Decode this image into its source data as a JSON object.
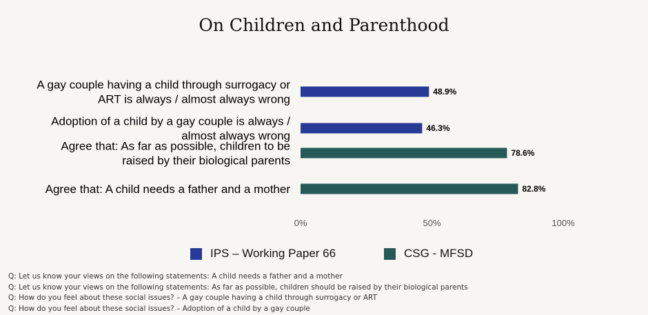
{
  "chart_data": {
    "type": "bar",
    "orientation": "horizontal",
    "title": "On Children and Parenthood",
    "categories": [
      [
        "A gay couple having a child through surrogacy or",
        "ART is always / almost always wrong"
      ],
      [
        "Adoption of a child by a gay couple is always /",
        "almost always wrong"
      ],
      [
        "Agree that: As far as possible, children to be",
        "raised by their biological parents"
      ],
      [
        "Agree that: A child needs a father and a mother"
      ]
    ],
    "values": [
      48.9,
      46.3,
      78.6,
      82.8
    ],
    "value_labels": [
      "48.9%",
      "46.3%",
      "78.6%",
      "82.8%"
    ],
    "series_index": [
      0,
      0,
      1,
      1
    ],
    "series": [
      {
        "name": "IPS – Working Paper 66",
        "color": "#263a96"
      },
      {
        "name": "CSG - MFSD",
        "color": "#255a57"
      }
    ],
    "xlim": [
      0,
      100
    ],
    "ticks": [
      0,
      50,
      100
    ],
    "tick_labels": [
      "0%",
      "50%",
      "100%"
    ],
    "grid": false,
    "legend": "bottom"
  },
  "notes": [
    "Q: Let us know your views on the following statements:  A child needs a father and a mother",
    "Q: Let us know your views on the following statements:  As far as possible, children should be raised by their biological parents",
    "Q: How do you feel about these social issues? – A gay couple having a child through surrogacy or ART",
    "Q: How do you feel about these social issues? – Adoption of a child by a gay couple"
  ]
}
